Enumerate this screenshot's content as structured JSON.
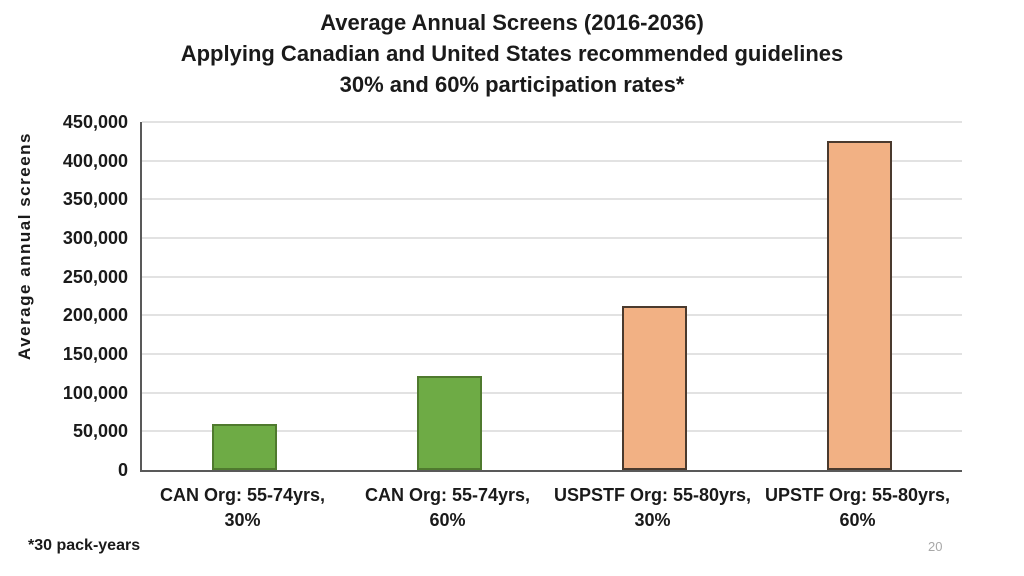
{
  "slide": {
    "title_lines": [
      "Average Annual Screens (2016-2036)",
      "Applying Canadian and United States recommended guidelines",
      "30% and 60% participation rates*"
    ],
    "footnote": "*30 pack-years",
    "page_number": "20"
  },
  "chart_data": {
    "type": "bar",
    "title": "Average Annual Screens (2016-2036) Applying Canadian and United States recommended guidelines 30% and 60% participation rates*",
    "xlabel": "",
    "ylabel": "Average annual screens",
    "ylim": [
      0,
      450000
    ],
    "ytick_step": 50000,
    "grid": true,
    "legend": false,
    "categories": [
      [
        "CAN Org: 55-74yrs,",
        "30%"
      ],
      [
        "CAN Org: 55-74yrs,",
        "60%"
      ],
      [
        "USPSTF Org: 55-80yrs,",
        "30%"
      ],
      [
        "UPSTF Org: 55-80yrs,",
        "60%"
      ]
    ],
    "values": [
      60000,
      122000,
      212000,
      425000
    ],
    "bar_fill_colors": [
      "#6EAB45",
      "#6EAB45",
      "#F2B184",
      "#F2B184"
    ],
    "bar_border_colors": [
      "#4F7A2E",
      "#4F7A2E",
      "#4A3A2E",
      "#4A3A2E"
    ],
    "colors": {
      "gridline": "#E2E2E2",
      "axis": "#595959",
      "text": "#1A1A1A",
      "page_number": "#A8A8A8"
    }
  }
}
